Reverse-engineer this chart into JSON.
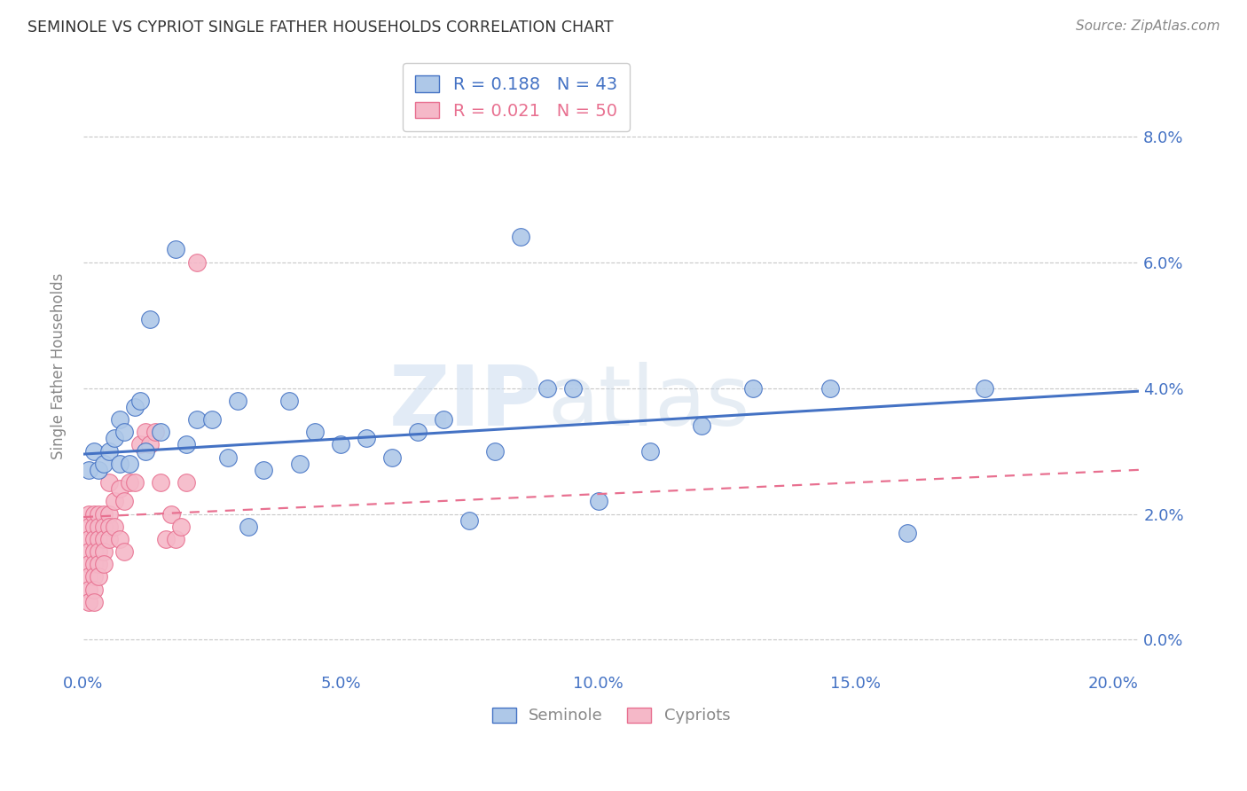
{
  "title": "SEMINOLE VS CYPRIOT SINGLE FATHER HOUSEHOLDS CORRELATION CHART",
  "source": "Source: ZipAtlas.com",
  "ylabel": "Single Father Households",
  "xlabel_ticks": [
    "0.0%",
    "5.0%",
    "10.0%",
    "15.0%",
    "20.0%"
  ],
  "ylabel_ticks": [
    "0.0%",
    "2.0%",
    "4.0%",
    "6.0%",
    "8.0%"
  ],
  "xlim": [
    0.0,
    0.205
  ],
  "ylim": [
    -0.005,
    0.092
  ],
  "ytick_positions": [
    0.0,
    0.02,
    0.04,
    0.06,
    0.08
  ],
  "xtick_positions": [
    0.0,
    0.05,
    0.1,
    0.15,
    0.2
  ],
  "seminole_color": "#aec8e8",
  "cypriot_color": "#f5b8c8",
  "seminole_line_color": "#4472C4",
  "cypriot_line_color": "#e87090",
  "R_seminole": 0.188,
  "N_seminole": 43,
  "R_cypriot": 0.021,
  "N_cypriot": 50,
  "legend_seminole": "Seminole",
  "legend_cypriot": "Cypriots",
  "seminole_x": [
    0.001,
    0.002,
    0.003,
    0.004,
    0.005,
    0.006,
    0.007,
    0.007,
    0.008,
    0.009,
    0.01,
    0.011,
    0.012,
    0.013,
    0.015,
    0.018,
    0.02,
    0.022,
    0.025,
    0.028,
    0.03,
    0.032,
    0.035,
    0.04,
    0.042,
    0.045,
    0.05,
    0.055,
    0.06,
    0.065,
    0.07,
    0.075,
    0.08,
    0.085,
    0.09,
    0.095,
    0.1,
    0.11,
    0.12,
    0.13,
    0.145,
    0.16,
    0.175
  ],
  "seminole_y": [
    0.027,
    0.03,
    0.027,
    0.028,
    0.03,
    0.032,
    0.028,
    0.035,
    0.033,
    0.028,
    0.037,
    0.038,
    0.03,
    0.051,
    0.033,
    0.062,
    0.031,
    0.035,
    0.035,
    0.029,
    0.038,
    0.018,
    0.027,
    0.038,
    0.028,
    0.033,
    0.031,
    0.032,
    0.029,
    0.033,
    0.035,
    0.019,
    0.03,
    0.064,
    0.04,
    0.04,
    0.022,
    0.03,
    0.034,
    0.04,
    0.04,
    0.017,
    0.04
  ],
  "cypriot_x": [
    0.001,
    0.001,
    0.001,
    0.001,
    0.001,
    0.001,
    0.001,
    0.001,
    0.002,
    0.002,
    0.002,
    0.002,
    0.002,
    0.002,
    0.002,
    0.002,
    0.003,
    0.003,
    0.003,
    0.003,
    0.003,
    0.003,
    0.004,
    0.004,
    0.004,
    0.004,
    0.004,
    0.005,
    0.005,
    0.005,
    0.005,
    0.006,
    0.006,
    0.007,
    0.007,
    0.008,
    0.008,
    0.009,
    0.01,
    0.011,
    0.012,
    0.013,
    0.014,
    0.015,
    0.016,
    0.017,
    0.018,
    0.019,
    0.02,
    0.022
  ],
  "cypriot_y": [
    0.02,
    0.018,
    0.016,
    0.014,
    0.012,
    0.01,
    0.008,
    0.006,
    0.02,
    0.018,
    0.016,
    0.014,
    0.012,
    0.01,
    0.008,
    0.006,
    0.02,
    0.018,
    0.016,
    0.014,
    0.012,
    0.01,
    0.02,
    0.018,
    0.016,
    0.014,
    0.012,
    0.025,
    0.02,
    0.018,
    0.016,
    0.022,
    0.018,
    0.024,
    0.016,
    0.022,
    0.014,
    0.025,
    0.025,
    0.031,
    0.033,
    0.031,
    0.033,
    0.025,
    0.016,
    0.02,
    0.016,
    0.018,
    0.025,
    0.06
  ],
  "seminole_trendline_x0": 0.0,
  "seminole_trendline_x1": 0.205,
  "seminole_trendline_y0": 0.0295,
  "seminole_trendline_y1": 0.0395,
  "cypriot_trendline_x0": 0.0,
  "cypriot_trendline_x1": 0.205,
  "cypriot_trendline_y0": 0.0195,
  "cypriot_trendline_y1": 0.027,
  "watermark_zip": "ZIP",
  "watermark_atlas": "atlas",
  "background_color": "#ffffff",
  "grid_color": "#c8c8c8",
  "tick_label_color": "#4472C4",
  "axis_label_color": "#888888",
  "title_color": "#333333"
}
